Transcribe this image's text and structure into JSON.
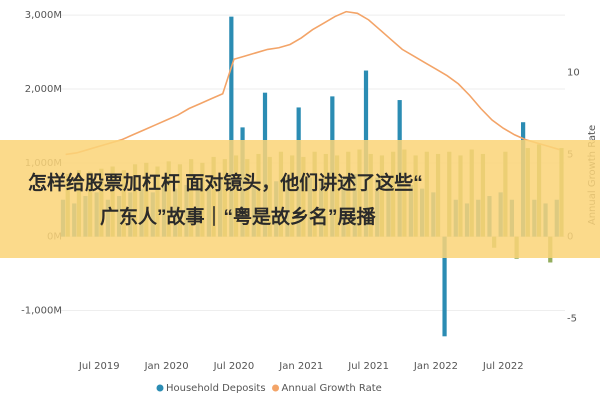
{
  "chart_data": {
    "type": "bar_line",
    "categories": [
      null,
      null,
      null,
      "Jul 2019",
      null,
      null,
      null,
      null,
      null,
      "Jan 2020",
      null,
      null,
      null,
      null,
      null,
      "Jul 2020",
      null,
      null,
      null,
      null,
      null,
      "Jan 2021",
      null,
      null,
      null,
      null,
      null,
      "Jul 2021",
      null,
      null,
      null,
      null,
      null,
      "Jan 2022",
      null,
      null,
      null,
      null,
      null,
      "Jul 2022",
      null,
      null,
      null,
      null,
      null
    ],
    "series": [
      {
        "name": "Household Deposits",
        "color": "#2b8cb3",
        "values": [
          500,
          450,
          550,
          600,
          500,
          550,
          600,
          650,
          600,
          700,
          650,
          700,
          750,
          700,
          800,
          2980,
          1480,
          700,
          1950,
          750,
          800,
          1750,
          800,
          750,
          1900,
          800,
          850,
          2250,
          800,
          750,
          1850,
          700,
          650,
          600,
          -1350,
          500,
          450,
          500,
          550,
          600,
          500,
          1550,
          500,
          450,
          500
        ]
      },
      {
        "color": "#93ad5e",
        "values": [
          850,
          900,
          880,
          920,
          950,
          900,
          980,
          1000,
          950,
          1020,
          980,
          1050,
          1000,
          1080,
          1050,
          1100,
          1050,
          1120,
          1080,
          1150,
          1100,
          1080,
          1150,
          1120,
          1100,
          1150,
          1180,
          1120,
          1100,
          1150,
          1180,
          1100,
          1150,
          1120,
          1150,
          1100,
          1180,
          1120,
          -150,
          1150,
          -300,
          1200,
          1250,
          -350,
          1200
        ]
      },
      {
        "name": "Annual Growth Rate",
        "color": "#f3a468",
        "axis": "y2",
        "values": [
          5.0,
          5.1,
          5.3,
          5.5,
          5.7,
          5.9,
          6.2,
          6.5,
          6.8,
          7.1,
          7.4,
          7.8,
          8.1,
          8.4,
          8.7,
          10.8,
          11.0,
          11.2,
          11.4,
          11.5,
          11.7,
          12.1,
          12.6,
          13.0,
          13.4,
          13.7,
          13.6,
          13.2,
          12.6,
          12.0,
          11.4,
          11.0,
          10.6,
          10.2,
          9.8,
          9.3,
          8.6,
          7.8,
          7.1,
          6.6,
          6.2,
          5.9,
          5.7,
          5.5,
          5.3
        ]
      }
    ],
    "ylim": [
      -1400,
      3070
    ],
    "yticks": [
      {
        "value": -1000,
        "label": "-1,000M"
      },
      {
        "value": 0,
        "label": "0M"
      },
      {
        "value": 1000,
        "label": "1,000M"
      },
      {
        "value": 2000,
        "label": "2,000M"
      },
      {
        "value": 3000,
        "label": "3,000M"
      }
    ],
    "y2lim": [
      -6.3,
      13.8
    ],
    "y2ticks": [
      -5,
      0,
      5,
      10
    ],
    "y2label": "Annual Growth Rate",
    "grid": true
  },
  "overlay": {
    "lines": [
      "怎样给股票加杠杆 面对镜头，他们讲述了这些“",
      "广东人”故事｜“粤是故乡名”展播"
    ]
  }
}
